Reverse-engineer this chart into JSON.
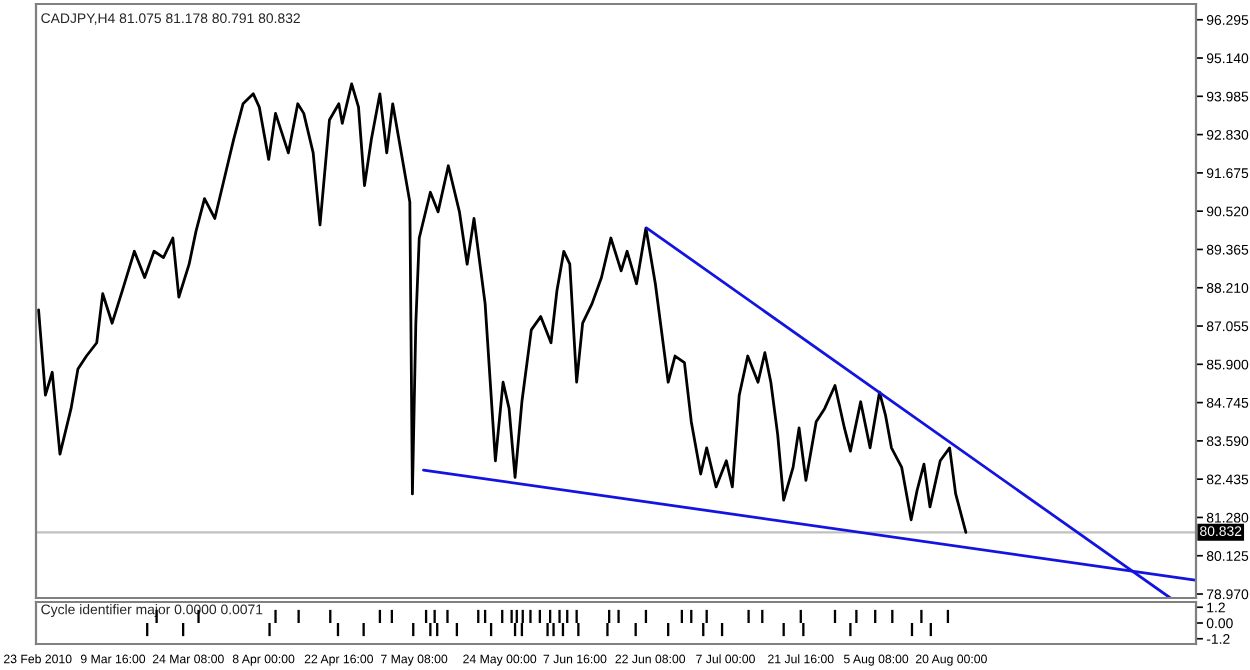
{
  "chart_data": [
    {
      "type": "line",
      "title": "CADJPY,H4 81.075 81.178 80.791 80.832",
      "series": [
        {
          "color": "#000000",
          "x": [
            "2010-02-23T04:00",
            "2010-02-24T12:00",
            "2010-02-25T20:00",
            "2010-02-27T08:00",
            "2010-03-01T12:00",
            "2010-03-02T20:00",
            "2010-03-04T12:00",
            "2010-03-06T12:00",
            "2010-03-07T16:00",
            "2010-03-09T12:00",
            "2010-03-11T12:00",
            "2010-03-13T20:00",
            "2010-03-15T20:00",
            "2010-03-17T16:00",
            "2010-03-19T12:00",
            "2010-03-21T08:00",
            "2010-03-22T12:00",
            "2010-03-24T12:00",
            "2010-03-25T20:00",
            "2010-03-27T12:00",
            "2010-03-29T12:00",
            "2010-03-31T08:00",
            "2010-04-02T04:00",
            "2010-04-04T00:00",
            "2010-04-06T00:00",
            "2010-04-07T04:00",
            "2010-04-09T00:00",
            "2010-04-10T08:00",
            "2010-04-12T20:00",
            "2010-04-14T16:00",
            "2010-04-15T20:00",
            "2010-04-17T16:00",
            "2010-04-19T00:00",
            "2010-04-20T20:00",
            "2010-04-22T16:00",
            "2010-04-23T08:00",
            "2010-04-25T04:00",
            "2010-04-26T12:00",
            "2010-04-27T16:00",
            "2010-04-29T00:00",
            "2010-04-30T16:00",
            "2010-05-02T00:00",
            "2010-05-03T04:00",
            "2010-05-05T04:00",
            "2010-05-06T12:00",
            "2010-05-07T00:00",
            "2010-05-07T16:00",
            "2010-05-08T08:00",
            "2010-05-10T12:00",
            "2010-05-12T00:00",
            "2010-05-14T00:00",
            "2010-05-16T04:00",
            "2010-05-17T16:00",
            "2010-05-19T00:00",
            "2010-05-21T04:00",
            "2010-05-22T12:00",
            "2010-05-23T04:00",
            "2010-05-24T16:00",
            "2010-05-25T20:00",
            "2010-05-27T00:00",
            "2010-05-28T08:00",
            "2010-05-30T04:00",
            "2010-06-01T00:00",
            "2010-06-03T00:00",
            "2010-06-04T04:00",
            "2010-06-05T12:00",
            "2010-06-06T16:00",
            "2010-06-08T00:00",
            "2010-06-09T04:00",
            "2010-06-11T00:00",
            "2010-06-12T20:00",
            "2010-06-14T16:00",
            "2010-06-16T16:00",
            "2010-06-17T20:00",
            "2010-06-19T16:00",
            "2010-06-21T12:00",
            "2010-06-23T08:00",
            "2010-06-24T16:00",
            "2010-06-25T20:00",
            "2010-06-27T04:00",
            "2010-06-29T00:00",
            "2010-06-30T08:00",
            "2010-07-02T04:00",
            "2010-07-03T08:00",
            "2010-07-05T04:00",
            "2010-07-07T04:00",
            "2010-07-08T08:00",
            "2010-07-09T16:00",
            "2010-07-11T08:00",
            "2010-07-13T08:00",
            "2010-07-14T16:00",
            "2010-07-15T20:00",
            "2010-07-17T04:00",
            "2010-07-18T08:00",
            "2010-07-20T04:00",
            "2010-07-21T08:00",
            "2010-07-22T16:00",
            "2010-07-24T16:00",
            "2010-07-26T08:00",
            "2010-07-28T08:00",
            "2010-07-30T04:00",
            "2010-07-31T08:00",
            "2010-08-02T08:00",
            "2010-08-04T04:00",
            "2010-08-06T00:00",
            "2010-08-07T04:00",
            "2010-08-08T08:00",
            "2010-08-10T08:00",
            "2010-08-12T04:00",
            "2010-08-13T08:00",
            "2010-08-14T16:00",
            "2010-08-15T20:00",
            "2010-08-17T20:00",
            "2010-08-19T16:00",
            "2010-08-20T20:00",
            "2010-08-22T20:00"
          ],
          "values": [
            87.54,
            84.97,
            85.66,
            83.19,
            84.57,
            85.76,
            86.15,
            86.55,
            88.03,
            87.14,
            88.13,
            89.31,
            88.52,
            89.31,
            89.12,
            89.71,
            87.93,
            88.92,
            89.91,
            90.9,
            90.3,
            91.49,
            92.68,
            93.76,
            94.06,
            93.66,
            92.08,
            93.47,
            92.28,
            93.76,
            93.47,
            92.28,
            90.11,
            93.27,
            93.76,
            93.17,
            94.36,
            93.66,
            91.29,
            92.68,
            94.06,
            92.28,
            93.76,
            91.98,
            90.8,
            81.99,
            87.14,
            89.71,
            91.09,
            90.5,
            91.89,
            90.5,
            88.92,
            90.3,
            87.73,
            84.57,
            82.99,
            85.36,
            84.57,
            82.49,
            84.77,
            86.94,
            87.34,
            86.55,
            88.13,
            89.31,
            88.92,
            85.36,
            87.14,
            87.73,
            88.52,
            89.71,
            88.72,
            89.31,
            88.33,
            90.01,
            88.33,
            86.75,
            85.36,
            86.15,
            85.95,
            84.17,
            82.59,
            83.38,
            82.2,
            82.99,
            82.2,
            84.96,
            86.15,
            85.36,
            86.25,
            85.36,
            83.78,
            81.8,
            82.79,
            83.98,
            82.4,
            84.17,
            84.57,
            85.26,
            83.98,
            83.28,
            84.77,
            83.38,
            85.06,
            84.37,
            83.38,
            82.79,
            81.21,
            82.1,
            82.89,
            81.6,
            82.99,
            83.38,
            82.0,
            80.83
          ]
        },
        {
          "color": "#1414e0",
          "x": [
            "2010-06-21T16:00",
            "2010-10-01T16:00"
          ],
          "values": [
            90.01,
            78.85
          ]
        },
        {
          "color": "#1414e0",
          "x": [
            "2010-05-09T04:00",
            "2010-10-06T12:00"
          ],
          "values": [
            82.71,
            79.39
          ]
        }
      ],
      "ref_lines": [
        {
          "axis": "y",
          "value": 80.832,
          "label": "80.832",
          "color": "#c0c0c0"
        }
      ],
      "xlim": [
        "2010-02-22T16:00",
        "2010-10-06T16:00"
      ],
      "ylim": [
        78.85,
        96.77
      ],
      "yticks": [
        {
          "value": 96.295,
          "label": "96.295"
        },
        {
          "value": 95.14,
          "label": "95.140"
        },
        {
          "value": 93.985,
          "label": "93.985"
        },
        {
          "value": 92.83,
          "label": "92.830"
        },
        {
          "value": 91.675,
          "label": "91.675"
        },
        {
          "value": 90.52,
          "label": "90.520"
        },
        {
          "value": 89.365,
          "label": "89.365"
        },
        {
          "value": 88.21,
          "label": "88.210"
        },
        {
          "value": 87.055,
          "label": "87.055"
        },
        {
          "value": 85.9,
          "label": "85.900"
        },
        {
          "value": 84.745,
          "label": "84.745"
        },
        {
          "value": 83.59,
          "label": "83.590"
        },
        {
          "value": 82.435,
          "label": "82.435"
        },
        {
          "value": 81.28,
          "label": "81.280"
        },
        {
          "value": 80.125,
          "label": "80.125"
        },
        {
          "value": 78.97,
          "label": "78.970"
        }
      ],
      "tick_labels": "y",
      "grid": false
    },
    {
      "type": "bar",
      "title": "Cycle identifier major 0.0000 0.0071",
      "x": [
        "2010-03-16T08:00",
        "2010-03-18T04:00",
        "2010-03-23T08:00",
        "2010-03-26T08:00",
        "2010-04-09T04:00",
        "2010-04-10T08:00",
        "2010-04-14T20:00",
        "2010-04-21T00:00",
        "2010-04-22T12:00",
        "2010-04-27T12:00",
        "2010-04-30T16:00",
        "2010-05-03T00:00",
        "2010-05-07T04:00",
        "2010-05-09T16:00",
        "2010-05-10T12:00",
        "2010-05-11T08:00",
        "2010-05-11T20:00",
        "2010-05-13T20:00",
        "2010-05-15T16:00",
        "2010-05-19T20:00",
        "2010-05-21T04:00",
        "2010-05-22T08:00",
        "2010-05-24T12:00",
        "2010-05-26T08:00",
        "2010-05-27T00:00",
        "2010-05-27T08:00",
        "2010-05-28T08:00",
        "2010-05-28T12:00",
        "2010-05-30T00:00",
        "2010-05-31T20:00",
        "2010-06-02T08:00",
        "2010-06-02T20:00",
        "2010-06-03T12:00",
        "2010-06-04T16:00",
        "2010-06-05T08:00",
        "2010-06-06T04:00",
        "2010-06-08T00:00",
        "2010-06-08T08:00",
        "2010-06-14T00:00",
        "2010-06-14T08:00",
        "2010-06-16T04:00",
        "2010-06-19T12:00",
        "2010-06-21T12:00",
        "2010-06-25T20:00",
        "2010-06-28T12:00",
        "2010-06-30T08:00",
        "2010-07-02T16:00",
        "2010-07-03T08:00",
        "2010-07-06T08:00",
        "2010-07-11T12:00",
        "2010-07-14T04:00",
        "2010-07-18T08:00",
        "2010-07-21T16:00",
        "2010-07-22T04:00",
        "2010-07-28T08:00",
        "2010-07-31T08:00",
        "2010-08-01T12:00",
        "2010-08-05T04:00",
        "2010-08-08T12:00",
        "2010-08-12T08:00",
        "2010-08-14T04:00",
        "2010-08-16T00:00",
        "2010-08-19T08:00"
      ],
      "values": [
        -1,
        1,
        -1,
        1,
        -1,
        1,
        1,
        1,
        -1,
        -1,
        1,
        1,
        -1,
        1,
        -1,
        1,
        -1,
        1,
        -1,
        1,
        1,
        -1,
        1,
        1,
        -1,
        1,
        -1,
        1,
        1,
        1,
        -1,
        1,
        -1,
        1,
        -1,
        1,
        1,
        -1,
        -1,
        1,
        1,
        -1,
        1,
        -1,
        1,
        1,
        -1,
        1,
        -1,
        1,
        1,
        -1,
        1,
        -1,
        1,
        -1,
        1,
        1,
        1,
        -1,
        1,
        -1,
        1
      ],
      "color": "#000000",
      "xlim": [
        "2010-02-22T16:00",
        "2010-10-06T16:00"
      ],
      "ylim": [
        -1.6,
        1.6
      ],
      "xticks": [
        {
          "value": "2010-02-23",
          "label": "23 Feb 2010"
        },
        {
          "value": "2010-03-09T16:00",
          "label": "9 Mar 16:00"
        },
        {
          "value": "2010-03-24T08:00",
          "label": "24 Mar 08:00"
        },
        {
          "value": "2010-04-08",
          "label": "8 Apr 00:00"
        },
        {
          "value": "2010-04-22T16:00",
          "label": "22 Apr 16:00"
        },
        {
          "value": "2010-05-07T08:00",
          "label": "7 May 08:00"
        },
        {
          "value": "2010-05-24",
          "label": "24 May 00:00"
        },
        {
          "value": "2010-06-07T16:00",
          "label": "7 Jun 16:00"
        },
        {
          "value": "2010-06-22T08:00",
          "label": "22 Jun 08:00"
        },
        {
          "value": "2010-07-07",
          "label": "7 Jul 00:00"
        },
        {
          "value": "2010-07-21T16:00",
          "label": "21 Jul 16:00"
        },
        {
          "value": "2010-08-05T08:00",
          "label": "5 Aug 08:00"
        },
        {
          "value": "2010-08-20",
          "label": "20 Aug 00:00"
        }
      ],
      "yticks": [
        {
          "value": 1.2,
          "label": "1.2"
        },
        {
          "value": 0,
          "label": "0.00"
        },
        {
          "value": -1.2,
          "label": "-1.2"
        }
      ],
      "grid": false
    }
  ]
}
